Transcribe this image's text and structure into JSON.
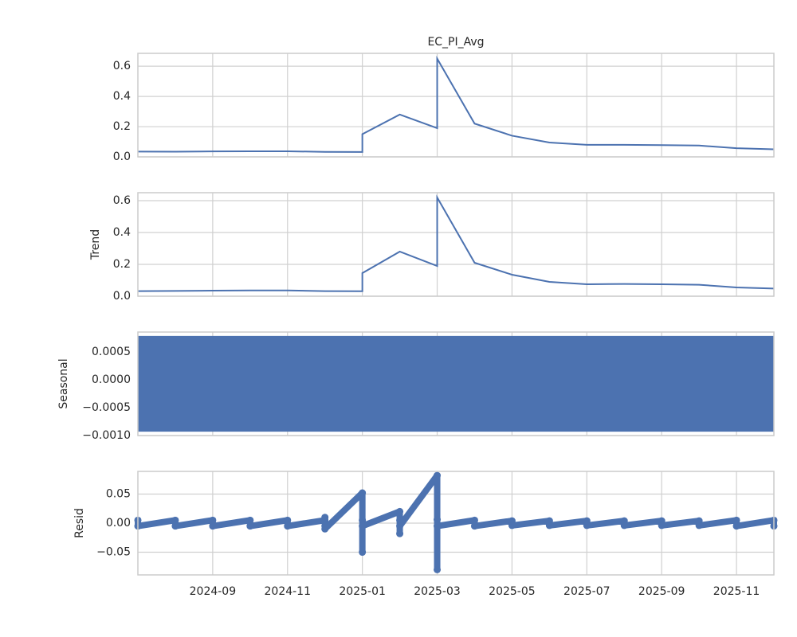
{
  "chart_data": [
    {
      "type": "line",
      "title": "EC_PI_Avg",
      "x": [
        "2024-07",
        "2024-08",
        "2024-09",
        "2024-10",
        "2024-11",
        "2024-12",
        "2025-01",
        "2025-01",
        "2025-02",
        "2025-03",
        "2025-03",
        "2025-04",
        "2025-05",
        "2025-06",
        "2025-07",
        "2025-08",
        "2025-09",
        "2025-10",
        "2025-11",
        "2025-12"
      ],
      "values": [
        0.035,
        0.034,
        0.036,
        0.037,
        0.037,
        0.033,
        0.032,
        0.15,
        0.28,
        0.19,
        0.65,
        0.22,
        0.14,
        0.095,
        0.08,
        0.08,
        0.078,
        0.075,
        0.057,
        0.05
      ],
      "color": "#4c72b0",
      "xlim": [
        "2024-07",
        "2025-12"
      ],
      "xticks": [
        "2024-09",
        "2024-11",
        "2025-01",
        "2025-03",
        "2025-05",
        "2025-07",
        "2025-09",
        "2025-11"
      ],
      "ylim": [
        0,
        0.685
      ],
      "yticks": [
        {
          "value": 0,
          "label": "0.0"
        },
        {
          "value": 0.2,
          "label": "0.2"
        },
        {
          "value": 0.4,
          "label": "0.4"
        },
        {
          "value": 0.6,
          "label": "0.6"
        }
      ],
      "grid": true
    },
    {
      "type": "line",
      "ylabel": "Trend",
      "x": [
        "2024-07",
        "2024-08",
        "2024-09",
        "2024-10",
        "2024-11",
        "2024-12",
        "2025-01",
        "2025-01",
        "2025-02",
        "2025-03",
        "2025-03",
        "2025-04",
        "2025-05",
        "2025-06",
        "2025-07",
        "2025-08",
        "2025-09",
        "2025-10",
        "2025-11",
        "2025-12"
      ],
      "values": [
        0.032,
        0.033,
        0.035,
        0.036,
        0.036,
        0.032,
        0.031,
        0.145,
        0.28,
        0.19,
        0.62,
        0.21,
        0.135,
        0.09,
        0.075,
        0.077,
        0.075,
        0.072,
        0.055,
        0.048
      ],
      "color": "#4c72b0",
      "xlim": [
        "2024-07",
        "2025-12"
      ],
      "xticks": [
        "2024-09",
        "2024-11",
        "2025-01",
        "2025-03",
        "2025-05",
        "2025-07",
        "2025-09",
        "2025-11"
      ],
      "ylim": [
        0,
        0.65
      ],
      "yticks": [
        {
          "value": 0,
          "label": "0.0"
        },
        {
          "value": 0.2,
          "label": "0.2"
        },
        {
          "value": 0.4,
          "label": "0.4"
        },
        {
          "value": 0.6,
          "label": "0.6"
        }
      ],
      "grid": true
    },
    {
      "type": "band",
      "ylabel": "Seasonal",
      "x": [
        "2024-07",
        "2025-12"
      ],
      "high": [
        0.00079,
        0.00079
      ],
      "low": [
        -0.00093,
        -0.00093
      ],
      "color": "#4c72b0",
      "xlim": [
        "2024-07",
        "2025-12"
      ],
      "xticks": [
        "2024-09",
        "2024-11",
        "2025-01",
        "2025-03",
        "2025-05",
        "2025-07",
        "2025-09",
        "2025-11"
      ],
      "ylim": [
        -0.001,
        0.00086
      ],
      "yticks": [
        {
          "value": 0.0005,
          "label": "0.0005"
        },
        {
          "value": 0,
          "label": "0.0000"
        },
        {
          "value": -0.0005,
          "label": "−0.0005"
        },
        {
          "value": -0.001,
          "label": "−0.0010"
        }
      ],
      "grid": true
    },
    {
      "type": "scatter",
      "ylabel": "Resid",
      "x": [
        "2024-07",
        "2024-07",
        "2024-08",
        "2024-08",
        "2024-09",
        "2024-09",
        "2024-10",
        "2024-10",
        "2024-11",
        "2024-11",
        "2024-12",
        "2024-12",
        "2024-12",
        "2024-12",
        "2025-01",
        "2025-01",
        "2025-01",
        "2025-01",
        "2025-02",
        "2025-02",
        "2025-02",
        "2025-02",
        "2025-03",
        "2025-03",
        "2025-03",
        "2025-03",
        "2025-04",
        "2025-04",
        "2025-05",
        "2025-05",
        "2025-06",
        "2025-06",
        "2025-07",
        "2025-07",
        "2025-08",
        "2025-08",
        "2025-09",
        "2025-09",
        "2025-10",
        "2025-10",
        "2025-11",
        "2025-11",
        "2025-12",
        "2025-12"
      ],
      "values": [
        0.005,
        -0.005,
        0.005,
        -0.005,
        0.005,
        -0.005,
        0.005,
        -0.005,
        0.005,
        -0.005,
        0.005,
        -0.005,
        0.01,
        -0.01,
        0.052,
        -0.05,
        0.005,
        -0.005,
        0.02,
        -0.018,
        0.005,
        -0.005,
        0.082,
        -0.08,
        0.006,
        -0.005,
        0.005,
        -0.005,
        0.004,
        -0.004,
        0.004,
        -0.004,
        0.004,
        -0.004,
        0.004,
        -0.004,
        0.004,
        -0.004,
        0.004,
        -0.004,
        0.005,
        -0.005,
        0.005,
        -0.005
      ],
      "color": "#4c72b0",
      "xlim": [
        "2024-07",
        "2025-12"
      ],
      "xticks": [
        {
          "value": "2024-09",
          "label": "2024-09"
        },
        {
          "value": "2024-11",
          "label": "2024-11"
        },
        {
          "value": "2025-01",
          "label": "2025-01"
        },
        {
          "value": "2025-03",
          "label": "2025-03"
        },
        {
          "value": "2025-05",
          "label": "2025-05"
        },
        {
          "value": "2025-07",
          "label": "2025-07"
        },
        {
          "value": "2025-09",
          "label": "2025-09"
        },
        {
          "value": "2025-11",
          "label": "2025-11"
        }
      ],
      "ylim": [
        -0.089,
        0.089
      ],
      "yticks": [
        {
          "value": -0.05,
          "label": "−0.05"
        },
        {
          "value": 0,
          "label": "0.00"
        },
        {
          "value": 0.05,
          "label": "0.05"
        }
      ],
      "grid": true
    }
  ]
}
